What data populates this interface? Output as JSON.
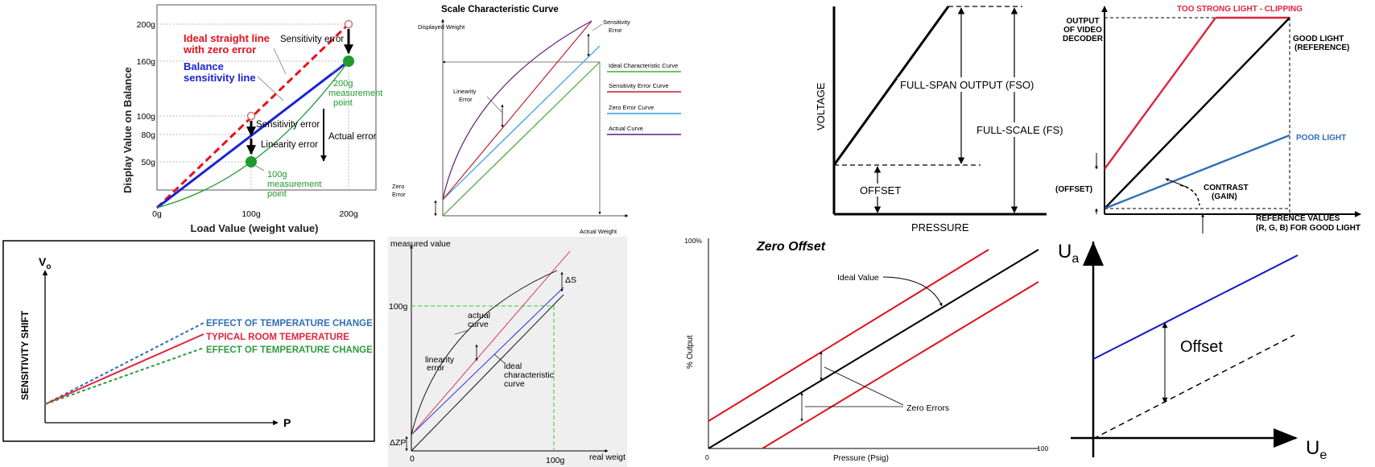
{
  "panel_balance": {
    "ylabel": "Display Value on Balance",
    "xlabel": "Load Value (weight value)",
    "yticks": [
      "200g",
      "160g",
      "100g",
      "80g",
      "50g"
    ],
    "xticks": [
      "0g",
      "100g",
      "200g"
    ],
    "ideal_line": [
      "Ideal straight line",
      "with zero error"
    ],
    "balance_line": [
      "Balance",
      "sensitivity line"
    ],
    "sens_error_top": "Sensitivity error",
    "sens_error_mid": "Sensitivity error",
    "linearity_error": "Linearity error",
    "actual_error": "Actual error",
    "pt200": [
      "200g",
      "measurement",
      "point"
    ],
    "pt100": [
      "100g",
      "measurement",
      "point"
    ],
    "colors": {
      "ideal": "#e8101a",
      "balance": "#1a23d6",
      "actual": "#1e9a2e"
    }
  },
  "panel_scale": {
    "title": "Scale Characteristic Curve",
    "ylabel": "Displayed Weight",
    "xlabel": "Actual Weight",
    "sensitivity_error": [
      "Sensitivity",
      "Error"
    ],
    "linearity_error": [
      "Linearity",
      "Error"
    ],
    "zero_error": [
      "Zero",
      "Error"
    ],
    "legend": [
      "Ideal Characteristic Curve",
      "Sensitivity Error Curve",
      "Zero Error Curve",
      "Actual Curve"
    ],
    "colors": {
      "ideal": "#4aa832",
      "sensitivity": "#c41e2e",
      "zero": "#2aa0d8",
      "actual": "#5a1e7e"
    }
  },
  "panel_voltage": {
    "ylabel": "VOLTAGE",
    "xlabel": "PRESSURE",
    "fso": "FULL-SPAN OUTPUT (FSO)",
    "fs": "FULL-SCALE (FS)",
    "offset": "OFFSET"
  },
  "panel_video": {
    "ylabel": [
      "OUTPUT",
      "OF VIDEO",
      "DECODER"
    ],
    "clipping": "TOO STRONG LIGHT - CLIPPING",
    "good": [
      "GOOD LIGHT",
      "(REFERENCE)"
    ],
    "poor": "POOR LIGHT",
    "offset": "(OFFSET)",
    "contrast": [
      "CONTRAST",
      "(GAIN)"
    ],
    "xlabel": [
      "REFERENCE VALUES",
      "(R, G, B) FOR GOOD LIGHT"
    ],
    "colors": {
      "clip": "#e0243e",
      "poor": "#2f6fb5"
    }
  },
  "panel_temp": {
    "vo": "V",
    "vo_sub": "o",
    "ylabel": "SENSITIVITY SHIFT",
    "xlabel": "P",
    "effect_top": "EFFECT OF TEMPERATURE CHANGE",
    "typical": "TYPICAL ROOM TEMPERATURE",
    "effect_bottom": "EFFECT OF TEMPERATURE CHANGE",
    "colors": {
      "top": "#2f6fb5",
      "typical": "#e0243e",
      "bottom": "#2e9a3e"
    }
  },
  "panel_measured": {
    "ylabel": "measured value",
    "xlabel": "real weigt",
    "y100": "100g",
    "x0": "0",
    "x100": "100g",
    "delta_s": "ΔS",
    "delta_zp": "ΔZP",
    "actual": [
      "actual",
      "curve"
    ],
    "linearity": [
      "linearity",
      "error"
    ],
    "ideal": [
      "ideal",
      "characteristic",
      "curve"
    ]
  },
  "panel_zero": {
    "title": "Zero Offset",
    "y100": "100%",
    "ylabel": "% Output",
    "xlabel": "Pressure (Psig)",
    "x0": "0",
    "x100": "100",
    "ideal": "Ideal Value",
    "zero_errors": "Zero Errors"
  },
  "panel_offset": {
    "ua": "U",
    "ua_sub": "a",
    "ue": "U",
    "ue_sub": "e",
    "offset": "Offset",
    "color": "#1414c8"
  }
}
